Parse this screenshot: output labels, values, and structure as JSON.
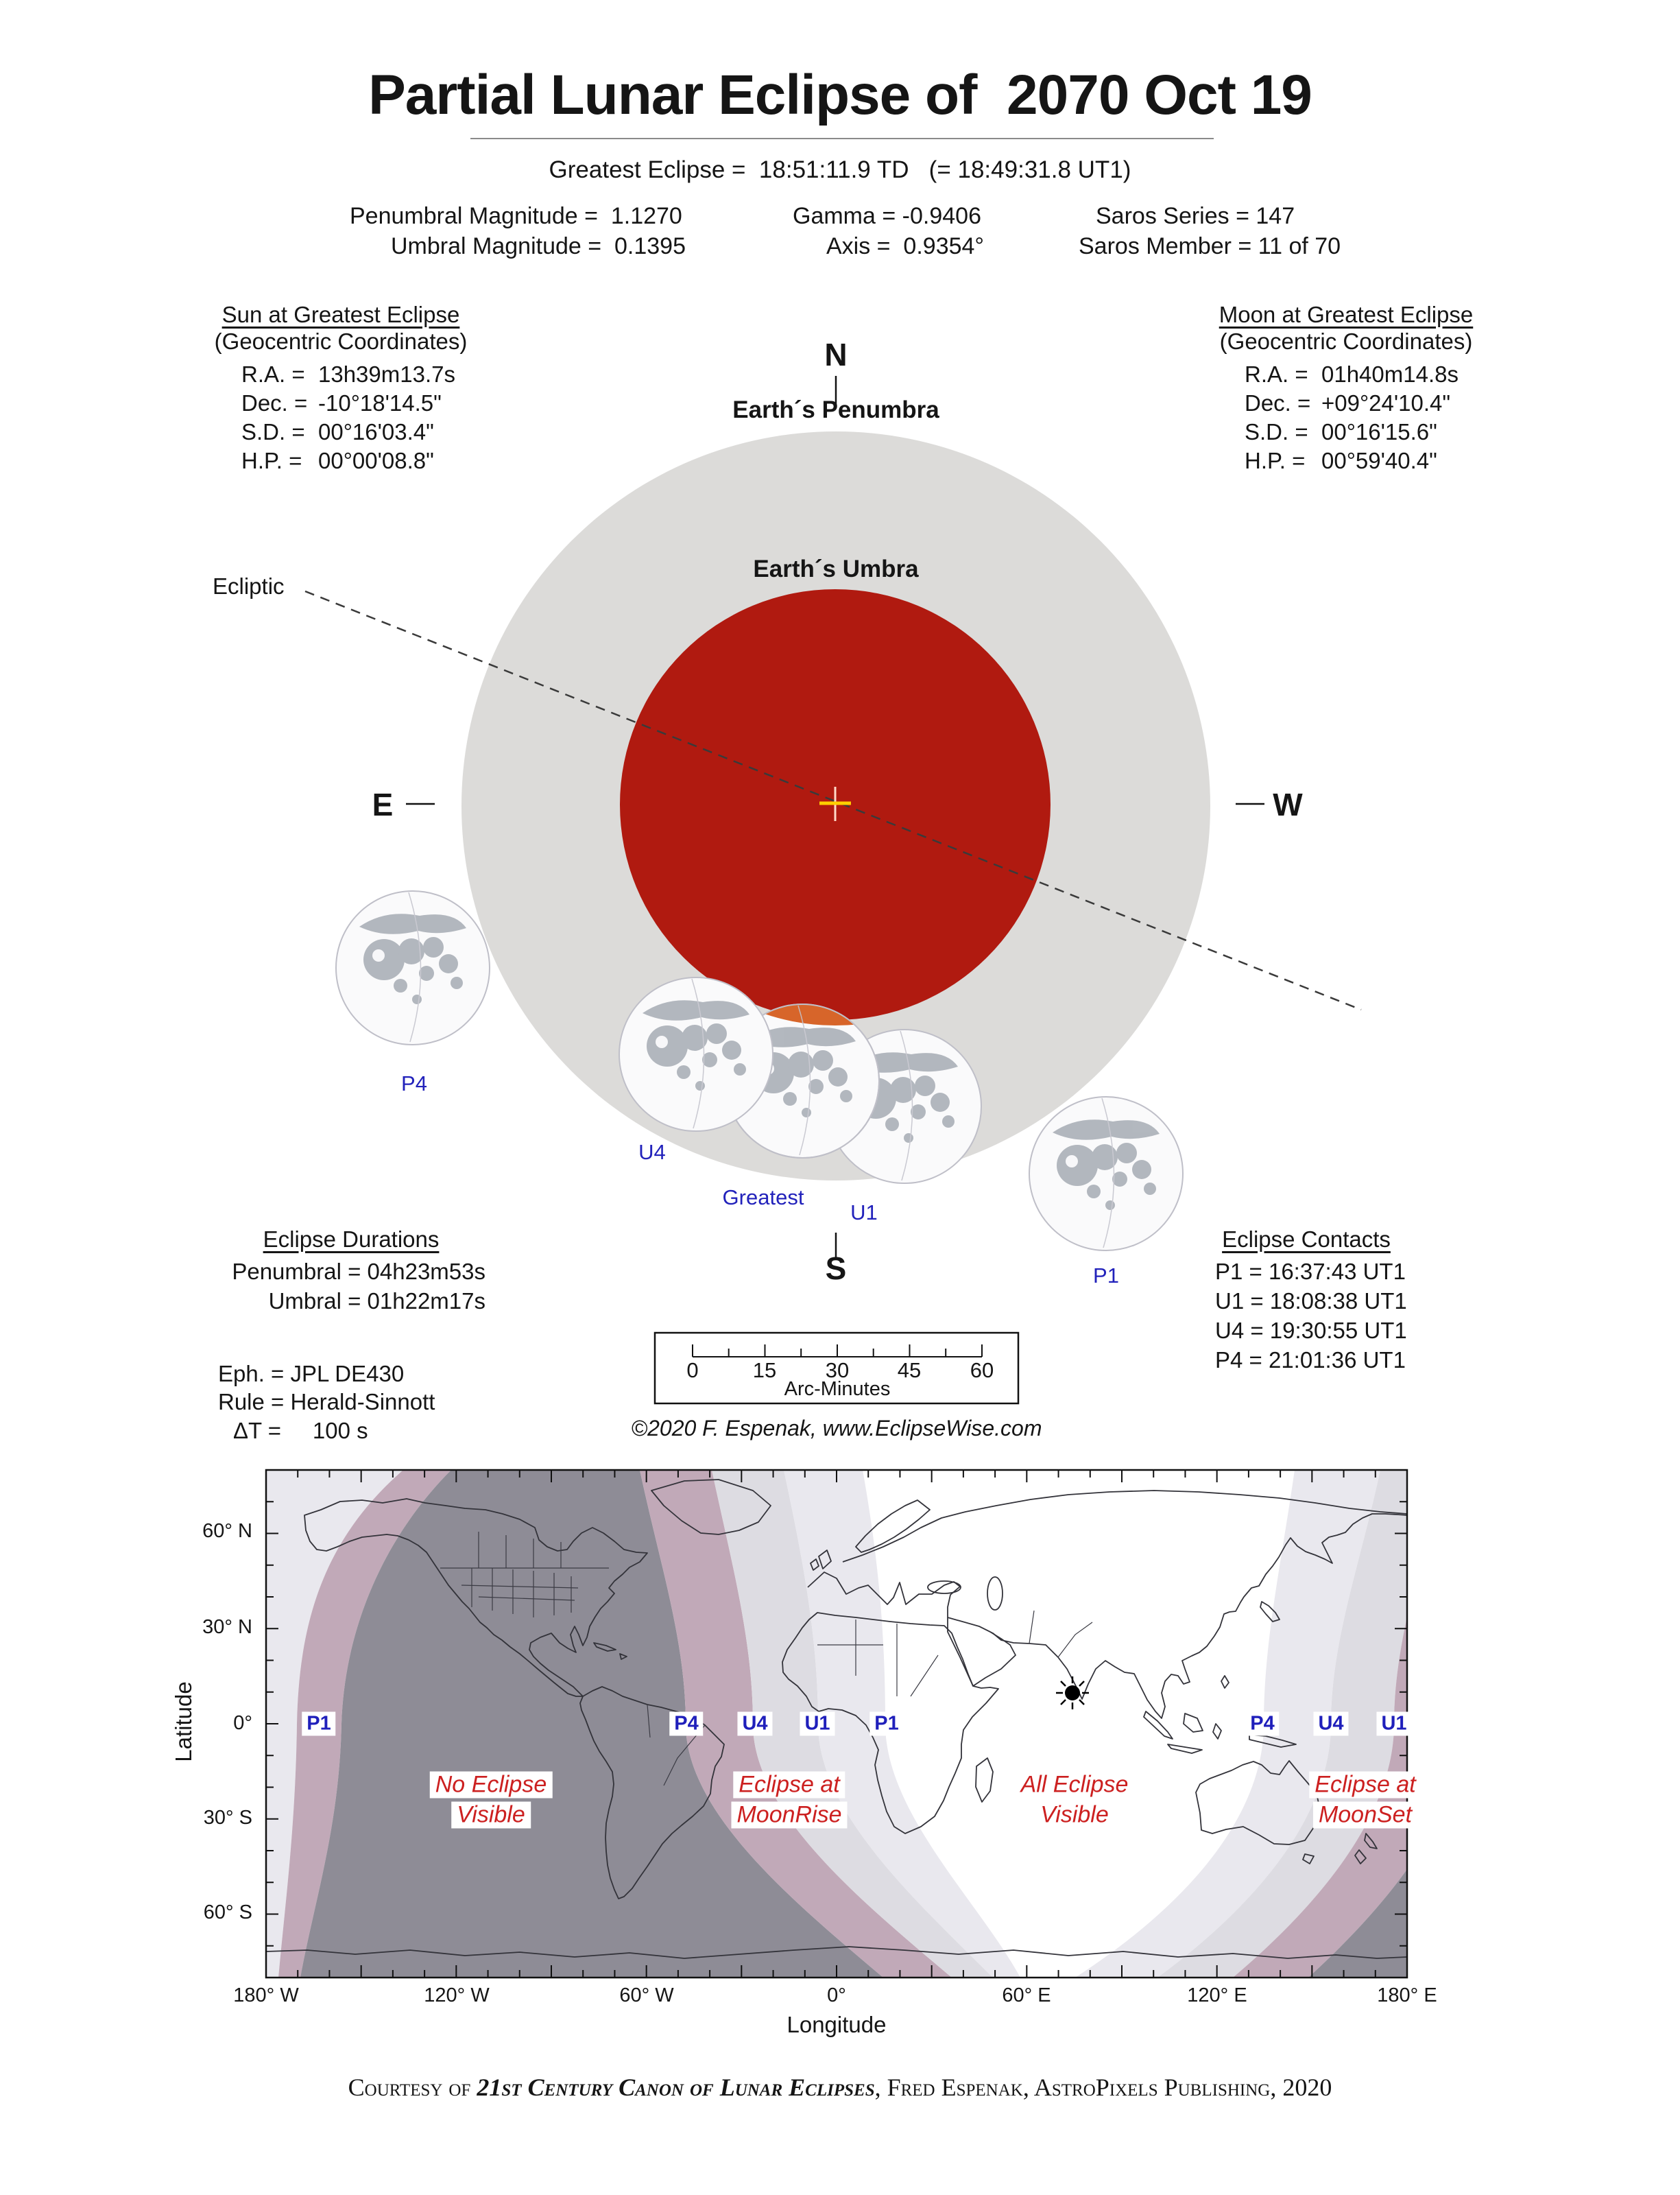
{
  "title": "Partial Lunar Eclipse of  2070 Oct 19",
  "greatest_eclipse": "Greatest Eclipse =  18:51:11.9 TD   (= 18:49:31.8 UT1)",
  "stats": {
    "penumbral_magnitude": "Penumbral Magnitude =  1.1270",
    "umbral_magnitude": "Umbral Magnitude =  0.1395",
    "gamma": "Gamma = -0.9406",
    "axis": "Axis =  0.9354°",
    "saros_series": "Saros Series = 147",
    "saros_member": "Saros Member = 11 of 70"
  },
  "sun": {
    "heading": "Sun at Greatest Eclipse",
    "subheading": "(Geocentric Coordinates)",
    "rows": [
      {
        "label": "R.A. =",
        "value": "13h39m13.7s"
      },
      {
        "label": "Dec. =",
        "value": "-10°18'14.5\""
      },
      {
        "label": "S.D. =",
        "value": "00°16'03.4\""
      },
      {
        "label": "H.P. =",
        "value": "00°00'08.8\""
      }
    ]
  },
  "moon": {
    "heading": "Moon at Greatest Eclipse",
    "subheading": "(Geocentric Coordinates)",
    "rows": [
      {
        "label": "R.A. =",
        "value": "01h40m14.8s"
      },
      {
        "label": "Dec. =",
        "value": "+09°24'10.4\""
      },
      {
        "label": "S.D. =",
        "value": "00°16'15.6\""
      },
      {
        "label": "H.P. =",
        "value": "00°59'40.4\""
      }
    ]
  },
  "diagram": {
    "compass": {
      "n": "N",
      "s": "S",
      "e": "E",
      "w": "W"
    },
    "penumbra_label": "Earth´s Penumbra",
    "umbra_label": "Earth´s Umbra",
    "ecliptic_label": "Ecliptic",
    "moon_positions": [
      "P4",
      "U4",
      "Greatest",
      "U1",
      "P1"
    ]
  },
  "durations": {
    "heading": "Eclipse Durations",
    "rows": [
      "Penumbral = 04h23m53s",
      "Umbral = 01h22m17s"
    ]
  },
  "parameters": {
    "eph": "Eph. = JPL DE430",
    "rule": "Rule = Herald-Sinnott",
    "delta_t": "ΔT =     100 s"
  },
  "contacts": {
    "heading": "Eclipse Contacts",
    "rows": [
      "P1 = 16:37:43 UT1",
      "U1 = 18:08:38 UT1",
      "U4 = 19:30:55 UT1",
      "P4 = 21:01:36 UT1"
    ]
  },
  "scale_bar": {
    "ticks": [
      "0",
      "15",
      "30",
      "45",
      "60"
    ],
    "label": "Arc-Minutes"
  },
  "credit": "©2020  F. Espenak, www.EclipseWise.com",
  "map": {
    "lat_ticks": [
      "60° N",
      "30° N",
      "0°",
      "30° S",
      "60° S"
    ],
    "lon_ticks": [
      "180° W",
      "120° W",
      "60° W",
      "0°",
      "60° E",
      "120° E",
      "180° E"
    ],
    "xlabel": "Longitude",
    "ylabel": "Latitude",
    "contact_labels_left": [
      "P1",
      "P4",
      "U4",
      "U1",
      "P1"
    ],
    "contact_labels_right": [
      "P4",
      "U4",
      "U1"
    ],
    "annotations": [
      {
        "line1": "No Eclipse",
        "line2": "Visible"
      },
      {
        "line1": "Eclipse at",
        "line2": "MoonRise"
      },
      {
        "line1": "All Eclipse",
        "line2": "Visible"
      },
      {
        "line1": "Eclipse at",
        "line2": "MoonSet"
      }
    ]
  },
  "courtesy": {
    "prefix": "Courtesy of ",
    "book": "21st Century Canon of Lunar Eclipses",
    "suffix": ", Fred Espenak, AstroPixels Publishing, 2020"
  },
  "colors": {
    "umbra_red": "#b01a10",
    "penumbra_gray": "#dcdbd9",
    "eclipsed_moon_orange": "#d4591a",
    "contact_label_blue": "#1f1fbb",
    "annotation_red": "#cc2020",
    "map_no_eclipse_gray": "#8e8c96",
    "map_penumbral_band_pink": "#c1a9b8",
    "map_band_light": "#dddce2",
    "map_band_lighter": "#e9e8ee"
  }
}
